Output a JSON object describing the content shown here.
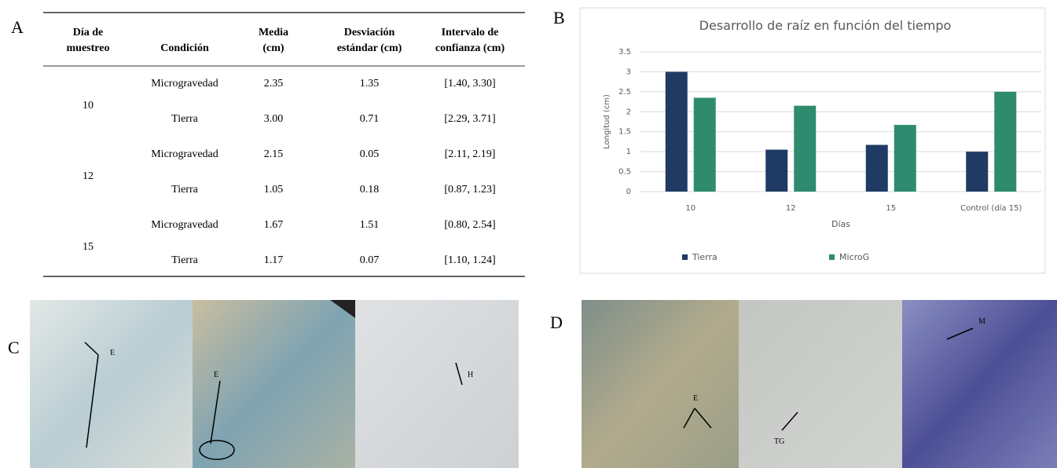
{
  "panel_labels": [
    "A",
    "B",
    "C",
    "D"
  ],
  "table": {
    "headers": [
      "Día de muestreo",
      "Condición",
      "Media (cm)",
      "Desviación estándar (cm)",
      "Intervalo de confianza (cm)"
    ],
    "groups": [
      {
        "day": "10",
        "rows": [
          [
            "Microgravedad",
            "2.35",
            "1.35",
            "[1.40, 3.30]"
          ],
          [
            "Tierra",
            "3.00",
            "0.71",
            "[2.29, 3.71]"
          ]
        ]
      },
      {
        "day": "12",
        "rows": [
          [
            "Microgravedad",
            "2.15",
            "0.05",
            "[2.11, 2.19]"
          ],
          [
            "Tierra",
            "1.05",
            "0.18",
            "[0.87, 1.23]"
          ]
        ]
      },
      {
        "day": "15",
        "rows": [
          [
            "Microgravedad",
            "1.67",
            "1.51",
            "[0.80, 2.54]"
          ],
          [
            "Tierra",
            "1.17",
            "0.07",
            "[1.10, 1.24]"
          ]
        ]
      }
    ]
  },
  "chart_data": {
    "type": "bar",
    "title": "Desarrollo de raíz en función del tiempo",
    "x_label": "Días",
    "y_label": "Longitud (cm)",
    "categories": [
      "10",
      "12",
      "15",
      "Control (día 15)"
    ],
    "series": [
      {
        "name": "Tierra",
        "color": "#1f3b63",
        "values": [
          3.0,
          1.05,
          1.17,
          1.0
        ]
      },
      {
        "name": "MicroG",
        "color": "#2e8b6e",
        "values": [
          2.35,
          2.15,
          1.67,
          2.5
        ]
      }
    ],
    "ylim": [
      0,
      3.5
    ],
    "yticks": [
      0,
      0.5,
      1,
      1.5,
      2,
      2.5,
      3,
      3.5
    ],
    "grid": true,
    "legend": "bottom"
  },
  "micrographs": {
    "C": [
      "E",
      "E",
      "H"
    ],
    "D": [
      "E",
      "TG",
      "M"
    ]
  }
}
